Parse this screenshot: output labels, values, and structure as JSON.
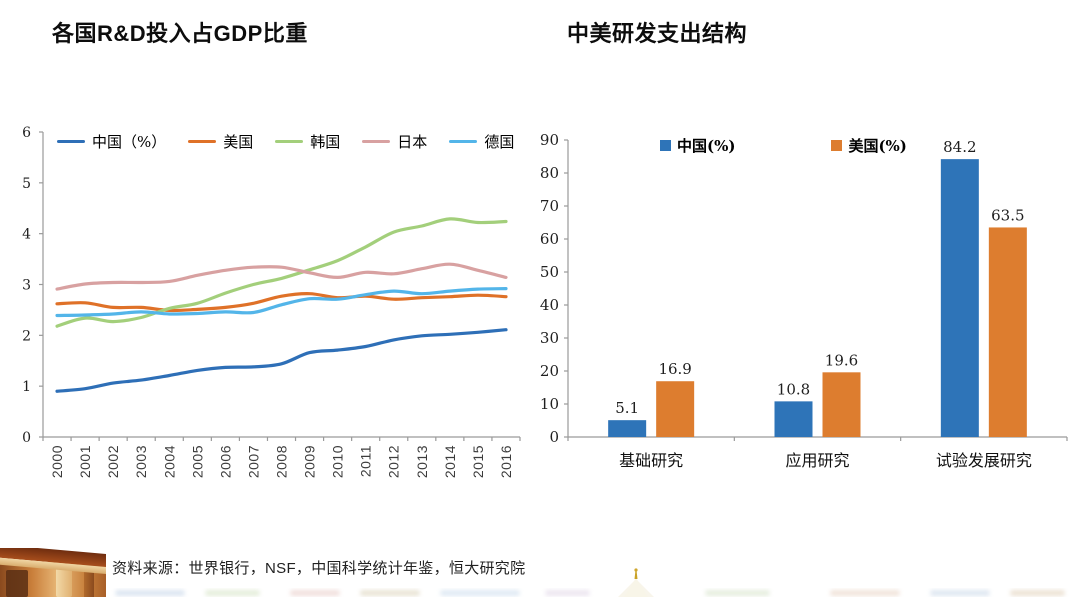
{
  "titles": {
    "left": "各国R&D投入占GDP比重",
    "right": "中美研发支出结构"
  },
  "chart_data": [
    {
      "id": "rd-gdp-lines",
      "type": "line",
      "title": "各国R&D投入占GDP比重",
      "x": [
        "2000",
        "2001",
        "2002",
        "2003",
        "2004",
        "2005",
        "2006",
        "2007",
        "2008",
        "2009",
        "2010",
        "2011",
        "2012",
        "2013",
        "2014",
        "2015",
        "2016"
      ],
      "ylim": [
        0,
        6
      ],
      "y_ticks": [
        0,
        1,
        2,
        3,
        4,
        5,
        6
      ],
      "grid": false,
      "legend_position": "top",
      "series": [
        {
          "name": "中国（%）",
          "slug": "china",
          "color": "#2E6FB7",
          "values": [
            0.9,
            0.95,
            1.06,
            1.12,
            1.21,
            1.31,
            1.37,
            1.38,
            1.44,
            1.66,
            1.71,
            1.78,
            1.91,
            1.99,
            2.02,
            2.06,
            2.11
          ]
        },
        {
          "name": "美国",
          "slug": "usa",
          "color": "#DF7128",
          "values": [
            2.62,
            2.64,
            2.55,
            2.55,
            2.49,
            2.51,
            2.55,
            2.63,
            2.77,
            2.82,
            2.74,
            2.77,
            2.71,
            2.74,
            2.76,
            2.79,
            2.76
          ]
        },
        {
          "name": "韩国",
          "slug": "korea",
          "color": "#A3CF7B",
          "values": [
            2.18,
            2.34,
            2.27,
            2.35,
            2.53,
            2.63,
            2.83,
            3.0,
            3.12,
            3.29,
            3.47,
            3.74,
            4.03,
            4.15,
            4.29,
            4.22,
            4.24
          ]
        },
        {
          "name": "日本",
          "slug": "japan",
          "color": "#D8A1A1",
          "values": [
            2.91,
            3.01,
            3.04,
            3.04,
            3.06,
            3.18,
            3.28,
            3.34,
            3.34,
            3.23,
            3.14,
            3.24,
            3.21,
            3.31,
            3.4,
            3.28,
            3.14
          ]
        },
        {
          "name": "德国",
          "slug": "germany",
          "color": "#53B5E9",
          "values": [
            2.39,
            2.4,
            2.42,
            2.46,
            2.42,
            2.43,
            2.46,
            2.45,
            2.6,
            2.72,
            2.71,
            2.8,
            2.87,
            2.82,
            2.87,
            2.91,
            2.92
          ]
        }
      ]
    },
    {
      "id": "cn-us-rd-structure",
      "type": "bar",
      "title": "中美研发支出结构",
      "categories": [
        "基础研究",
        "应用研究",
        "试验发展研究"
      ],
      "ylim": [
        0,
        90
      ],
      "y_ticks": [
        0,
        10,
        20,
        30,
        40,
        50,
        60,
        70,
        80,
        90
      ],
      "grid": false,
      "legend_position": "top",
      "series": [
        {
          "name": "中国(%)",
          "slug": "china",
          "color": "#2E74B8",
          "values": [
            5.1,
            10.8,
            84.2
          ]
        },
        {
          "name": "美国(%)",
          "slug": "usa",
          "color": "#DD7D2F",
          "values": [
            16.9,
            19.6,
            63.5
          ]
        }
      ]
    }
  ],
  "footer": {
    "source_text": "资料来源：世界银行，NSF，中国科学统计年鉴，恒大研究院"
  }
}
